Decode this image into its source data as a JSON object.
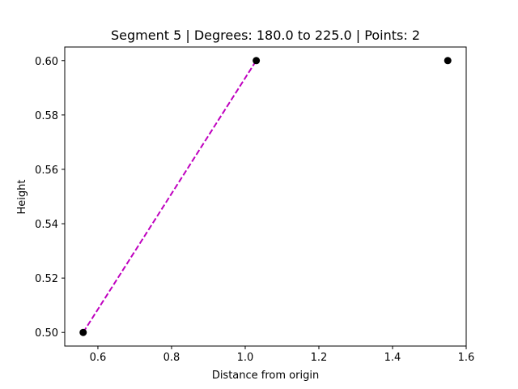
{
  "chart_data": {
    "type": "scatter",
    "title": "Segment 5 | Degrees: 180.0 to 225.0 | Points: 2",
    "xlabel": "Distance from origin",
    "ylabel": "Height",
    "xlim": [
      0.51,
      1.6
    ],
    "ylim": [
      0.495,
      0.605
    ],
    "xticks": [
      0.6,
      0.8,
      1.0,
      1.2,
      1.4,
      1.6
    ],
    "xtick_labels": [
      "0.6",
      "0.8",
      "1.0",
      "1.2",
      "1.4",
      "1.6"
    ],
    "yticks": [
      0.5,
      0.52,
      0.54,
      0.56,
      0.58,
      0.6
    ],
    "ytick_labels": [
      "0.50",
      "0.52",
      "0.54",
      "0.56",
      "0.58",
      "0.60"
    ],
    "grid": false,
    "series": [
      {
        "kind": "scatter",
        "color": "#000000",
        "points": [
          {
            "x": 0.56,
            "y": 0.5
          },
          {
            "x": 1.03,
            "y": 0.6
          },
          {
            "x": 1.55,
            "y": 0.6
          }
        ]
      },
      {
        "kind": "line",
        "style": "dashed",
        "color": "#bf00bf",
        "points": [
          {
            "x": 0.56,
            "y": 0.5
          },
          {
            "x": 1.03,
            "y": 0.6
          }
        ]
      }
    ]
  }
}
